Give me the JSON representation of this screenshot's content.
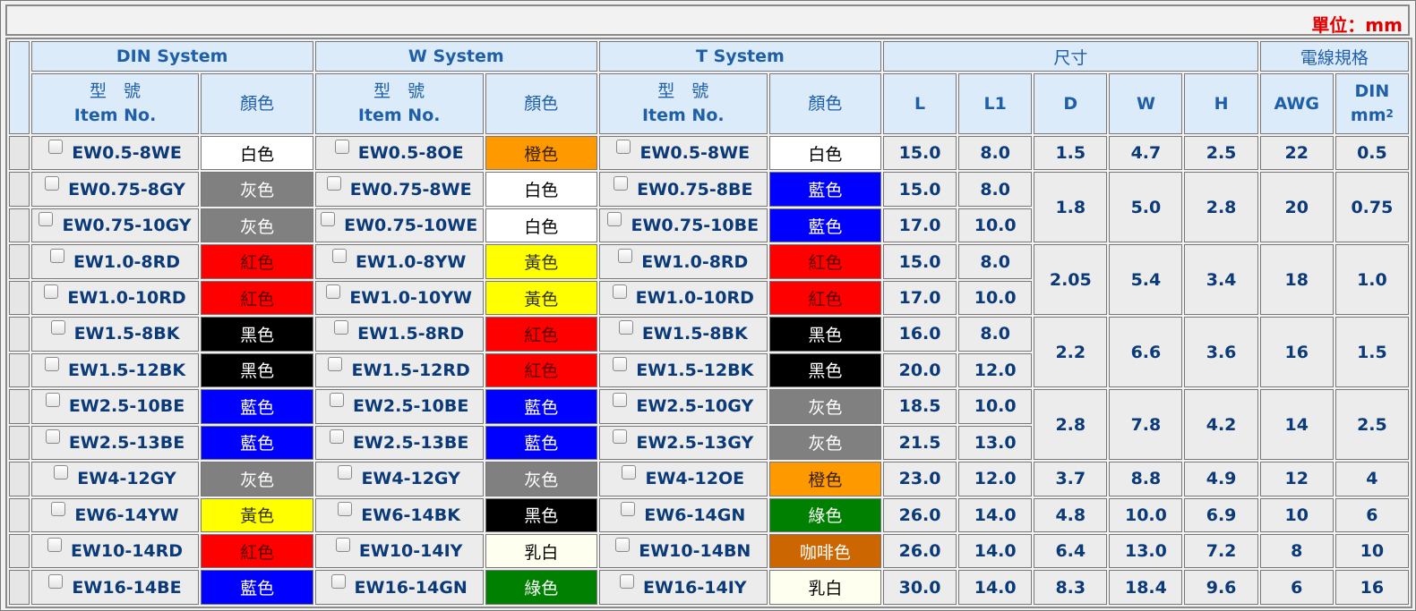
{
  "unit_label": "單位：mm",
  "headers": {
    "din_system": "DIN System",
    "w_system": "W System",
    "t_system": "T System",
    "size": "尺寸",
    "wire_spec": "電線規格",
    "item_no_zh": "型　號",
    "item_no_en": "Item No.",
    "color": "顏色",
    "L": "L",
    "L1": "L1",
    "D": "D",
    "W": "W",
    "H": "H",
    "AWG": "AWG",
    "DIN": "DIN",
    "mm": "mm",
    "mm_sup": "2"
  },
  "colors": {
    "白色": {
      "bg": "#ffffff",
      "fg": "#000000"
    },
    "灰色": {
      "bg": "#808080",
      "fg": "#ffffff"
    },
    "紅色": {
      "bg": "#ff0000",
      "fg": "#5a0000"
    },
    "黑色": {
      "bg": "#000000",
      "fg": "#ffffff"
    },
    "藍色": {
      "bg": "#0000ff",
      "fg": "#ffffff"
    },
    "黃色": {
      "bg": "#ffff00",
      "fg": "#333300"
    },
    "橙色": {
      "bg": "#ff9900",
      "fg": "#3a2000"
    },
    "乳白": {
      "bg": "#fffff0",
      "fg": "#000000"
    },
    "綠色": {
      "bg": "#008000",
      "fg": "#ffffff"
    },
    "咖啡色": {
      "bg": "#cc6600",
      "fg": "#ffffff"
    }
  },
  "rows": [
    {
      "din": "EW0.5-8WE",
      "din_c": "白色",
      "w": "EW0.5-8OE",
      "w_c": "橙色",
      "t": "EW0.5-8WE",
      "t_c": "白色",
      "L": "15.0",
      "L1": "8.0"
    },
    {
      "din": "EW0.75-8GY",
      "din_c": "灰色",
      "w": "EW0.75-8WE",
      "w_c": "白色",
      "t": "EW0.75-8BE",
      "t_c": "藍色",
      "L": "15.0",
      "L1": "8.0"
    },
    {
      "din": "EW0.75-10GY",
      "din_c": "灰色",
      "w": "EW0.75-10WE",
      "w_c": "白色",
      "t": "EW0.75-10BE",
      "t_c": "藍色",
      "L": "17.0",
      "L1": "10.0"
    },
    {
      "din": "EW1.0-8RD",
      "din_c": "紅色",
      "w": "EW1.0-8YW",
      "w_c": "黃色",
      "t": "EW1.0-8RD",
      "t_c": "紅色",
      "L": "15.0",
      "L1": "8.0"
    },
    {
      "din": "EW1.0-10RD",
      "din_c": "紅色",
      "w": "EW1.0-10YW",
      "w_c": "黃色",
      "t": "EW1.0-10RD",
      "t_c": "紅色",
      "L": "17.0",
      "L1": "10.0"
    },
    {
      "din": "EW1.5-8BK",
      "din_c": "黑色",
      "w": "EW1.5-8RD",
      "w_c": "紅色",
      "t": "EW1.5-8BK",
      "t_c": "黑色",
      "L": "16.0",
      "L1": "8.0"
    },
    {
      "din": "EW1.5-12BK",
      "din_c": "黑色",
      "w": "EW1.5-12RD",
      "w_c": "紅色",
      "t": "EW1.5-12BK",
      "t_c": "黑色",
      "L": "20.0",
      "L1": "12.0"
    },
    {
      "din": "EW2.5-10BE",
      "din_c": "藍色",
      "w": "EW2.5-10BE",
      "w_c": "藍色",
      "t": "EW2.5-10GY",
      "t_c": "灰色",
      "L": "18.5",
      "L1": "10.0"
    },
    {
      "din": "EW2.5-13BE",
      "din_c": "藍色",
      "w": "EW2.5-13BE",
      "w_c": "藍色",
      "t": "EW2.5-13GY",
      "t_c": "灰色",
      "L": "21.5",
      "L1": "13.0"
    },
    {
      "din": "EW4-12GY",
      "din_c": "灰色",
      "w": "EW4-12GY",
      "w_c": "灰色",
      "t": "EW4-12OE",
      "t_c": "橙色",
      "L": "23.0",
      "L1": "12.0"
    },
    {
      "din": "EW6-14YW",
      "din_c": "黃色",
      "w": "EW6-14BK",
      "w_c": "黑色",
      "t": "EW6-14GN",
      "t_c": "綠色",
      "L": "26.0",
      "L1": "14.0"
    },
    {
      "din": "EW10-14RD",
      "din_c": "紅色",
      "w": "EW10-14IY",
      "w_c": "乳白",
      "t": "EW10-14BN",
      "t_c": "咖啡色",
      "L": "26.0",
      "L1": "14.0"
    },
    {
      "din": "EW16-14BE",
      "din_c": "藍色",
      "w": "EW16-14GN",
      "w_c": "綠色",
      "t": "EW16-14IY",
      "t_c": "乳白",
      "L": "30.0",
      "L1": "14.0"
    }
  ],
  "groups": [
    {
      "rows": 1,
      "D": "1.5",
      "W": "4.7",
      "H": "2.5",
      "AWG": "22",
      "DIN": "0.5"
    },
    {
      "rows": 2,
      "D": "1.8",
      "W": "5.0",
      "H": "2.8",
      "AWG": "20",
      "DIN": "0.75"
    },
    {
      "rows": 2,
      "D": "2.05",
      "W": "5.4",
      "H": "3.4",
      "AWG": "18",
      "DIN": "1.0"
    },
    {
      "rows": 2,
      "D": "2.2",
      "W": "6.6",
      "H": "3.6",
      "AWG": "16",
      "DIN": "1.5"
    },
    {
      "rows": 2,
      "D": "2.8",
      "W": "7.8",
      "H": "4.2",
      "AWG": "14",
      "DIN": "2.5"
    },
    {
      "rows": 1,
      "D": "3.7",
      "W": "8.8",
      "H": "4.9",
      "AWG": "12",
      "DIN": "4"
    },
    {
      "rows": 1,
      "D": "4.8",
      "W": "10.0",
      "H": "6.9",
      "AWG": "10",
      "DIN": "6"
    },
    {
      "rows": 1,
      "D": "6.4",
      "W": "13.0",
      "H": "7.2",
      "AWG": "8",
      "DIN": "10"
    },
    {
      "rows": 1,
      "D": "8.3",
      "W": "18.4",
      "H": "9.6",
      "AWG": "6",
      "DIN": "16"
    }
  ]
}
